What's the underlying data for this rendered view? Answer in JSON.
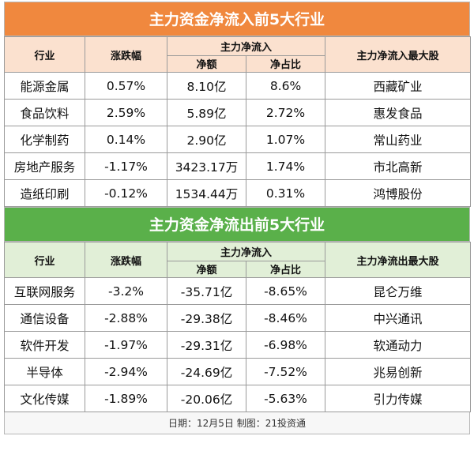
{
  "inflow": {
    "title": "主力资金净流入前5大行业",
    "headers": {
      "industry": "行业",
      "change": "涨跌幅",
      "net_group": "主力净流入",
      "net_amount": "净额",
      "net_ratio": "净占比",
      "top_stock": "主力净流入最大股"
    },
    "rows": [
      {
        "industry": "能源金属",
        "change": "0.57%",
        "amount": "8.10亿",
        "ratio": "8.6%",
        "stock": "西藏矿业"
      },
      {
        "industry": "食品饮料",
        "change": "2.59%",
        "amount": "5.89亿",
        "ratio": "2.72%",
        "stock": "惠发食品"
      },
      {
        "industry": "化学制药",
        "change": "0.14%",
        "amount": "2.90亿",
        "ratio": "1.07%",
        "stock": "常山药业"
      },
      {
        "industry": "房地产服务",
        "change": "-1.17%",
        "amount": "3423.17万",
        "ratio": "1.74%",
        "stock": "市北高新"
      },
      {
        "industry": "造纸印刷",
        "change": "-0.12%",
        "amount": "1534.44万",
        "ratio": "0.31%",
        "stock": "鸿博股份"
      }
    ]
  },
  "outflow": {
    "title": "主力资金净流出前5大行业",
    "headers": {
      "industry": "行业",
      "change": "涨跌幅",
      "net_group": "主力净流入",
      "net_amount": "净额",
      "net_ratio": "净占比",
      "top_stock": "主力净流出最大股"
    },
    "rows": [
      {
        "industry": "互联网服务",
        "change": "-3.2%",
        "amount": "-35.71亿",
        "ratio": "-8.65%",
        "stock": "昆仑万维"
      },
      {
        "industry": "通信设备",
        "change": "-2.88%",
        "amount": "-29.38亿",
        "ratio": "-8.46%",
        "stock": "中兴通讯"
      },
      {
        "industry": "软件开发",
        "change": "-1.97%",
        "amount": "-29.31亿",
        "ratio": "-6.98%",
        "stock": "软通动力"
      },
      {
        "industry": "半导体",
        "change": "-2.94%",
        "amount": "-24.69亿",
        "ratio": "-7.52%",
        "stock": "兆易创新"
      },
      {
        "industry": "文化传媒",
        "change": "-1.89%",
        "amount": "-20.06亿",
        "ratio": "-5.63%",
        "stock": "引力传媒"
      }
    ]
  },
  "footer": "日期：12月5日 制图：21投资通",
  "colors": {
    "inflow_banner": "#f0883e",
    "inflow_header": "#fbe1cf",
    "outflow_banner": "#5ab04a",
    "outflow_header": "#e1efd7"
  }
}
